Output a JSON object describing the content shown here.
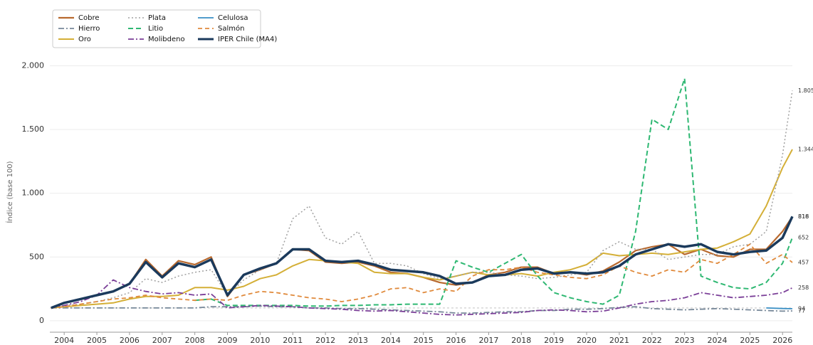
{
  "chart_data": {
    "type": "line",
    "y_label": "Índice (base 100)",
    "x": [
      2003.6,
      2004,
      2004.5,
      2005,
      2005.5,
      2006,
      2006.5,
      2007,
      2007.5,
      2008,
      2008.5,
      2009,
      2009.5,
      2010,
      2010.5,
      2011,
      2011.5,
      2012,
      2012.5,
      2013,
      2013.5,
      2014,
      2014.5,
      2015,
      2015.5,
      2016,
      2016.5,
      2017,
      2017.5,
      2018,
      2018.5,
      2019,
      2019.5,
      2020,
      2020.5,
      2021,
      2021.5,
      2022,
      2022.5,
      2023,
      2023.5,
      2024,
      2024.5,
      2025,
      2025.5,
      2026,
      2026.3
    ],
    "xlim": [
      2003.56,
      2026.3
    ],
    "xticks": [
      2004,
      2005,
      2006,
      2007,
      2008,
      2009,
      2010,
      2011,
      2012,
      2013,
      2014,
      2015,
      2016,
      2017,
      2018,
      2019,
      2020,
      2021,
      2022,
      2023,
      2024,
      2025,
      2026
    ],
    "ylim": [
      -90,
      2460
    ],
    "yticks": [
      0,
      500,
      {
        "value": 1000,
        "label": "1.000"
      },
      {
        "value": 1500,
        "label": "1.500"
      },
      {
        "value": 2000,
        "label": "2.000"
      }
    ],
    "grid": true,
    "baseline": 100,
    "legend": "upper-left",
    "series": [
      {
        "name": "Cobre",
        "color": "#b8692e",
        "width": 2.2,
        "dash": "none",
        "end_label": "816",
        "values": [
          100,
          140,
          170,
          200,
          230,
          290,
          480,
          350,
          470,
          440,
          500,
          190,
          360,
          400,
          450,
          560,
          550,
          460,
          450,
          460,
          430,
          380,
          370,
          340,
          300,
          280,
          300,
          360,
          380,
          420,
          420,
          370,
          380,
          360,
          390,
          460,
          550,
          580,
          600,
          520,
          560,
          510,
          500,
          560,
          560,
          700,
          816
        ]
      },
      {
        "name": "Hierro",
        "color": "#778899",
        "width": 1.8,
        "dash": "8,3,2,3",
        "end_label": "77",
        "values": [
          100,
          100,
          100,
          100,
          100,
          100,
          100,
          100,
          100,
          100,
          110,
          110,
          110,
          115,
          110,
          110,
          100,
          100,
          95,
          95,
          90,
          85,
          80,
          75,
          70,
          60,
          60,
          65,
          70,
          70,
          80,
          80,
          90,
          90,
          95,
          105,
          110,
          95,
          90,
          85,
          90,
          95,
          90,
          85,
          80,
          75,
          77
        ]
      },
      {
        "name": "Oro",
        "color": "#d4af37",
        "width": 2,
        "dash": "none",
        "end_label": "1.344",
        "values": [
          100,
          110,
          120,
          130,
          140,
          170,
          190,
          190,
          200,
          260,
          260,
          240,
          270,
          330,
          360,
          430,
          480,
          470,
          460,
          450,
          380,
          370,
          370,
          340,
          320,
          350,
          380,
          360,
          360,
          370,
          350,
          380,
          400,
          440,
          530,
          510,
          520,
          530,
          520,
          540,
          560,
          570,
          620,
          680,
          900,
          1200,
          1344
        ]
      },
      {
        "name": "Plata",
        "color": "#a0a0a0",
        "width": 1.5,
        "dash": "2,3",
        "end_label": "1.805",
        "values": [
          100,
          120,
          130,
          150,
          180,
          220,
          330,
          300,
          350,
          380,
          400,
          200,
          320,
          400,
          450,
          800,
          900,
          650,
          600,
          700,
          450,
          450,
          430,
          370,
          330,
          350,
          380,
          380,
          360,
          350,
          330,
          340,
          360,
          380,
          550,
          620,
          560,
          560,
          480,
          500,
          520,
          520,
          580,
          600,
          700,
          1300,
          1805
        ]
      },
      {
        "name": "Litio",
        "color": "#2eb872",
        "width": 2,
        "dash": "7,4",
        "end_label": "652",
        "values": [
          null,
          null,
          null,
          null,
          null,
          null,
          null,
          null,
          null,
          160,
          170,
          120,
          120,
          120,
          120,
          120,
          115,
          115,
          120,
          120,
          125,
          125,
          130,
          130,
          130,
          470,
          420,
          380,
          450,
          520,
          350,
          220,
          180,
          150,
          130,
          200,
          700,
          1580,
          1500,
          1900,
          350,
          300,
          260,
          250,
          300,
          450,
          652
        ]
      },
      {
        "name": "Molibdeno",
        "color": "#7b3f98",
        "width": 1.8,
        "dash": "8,3,2,3",
        "end_label": "258",
        "values": [
          100,
          120,
          150,
          200,
          320,
          260,
          230,
          210,
          220,
          200,
          210,
          100,
          110,
          120,
          115,
          110,
          100,
          95,
          90,
          80,
          75,
          80,
          70,
          60,
          50,
          45,
          50,
          55,
          60,
          65,
          80,
          85,
          80,
          70,
          75,
          100,
          130,
          150,
          160,
          180,
          220,
          200,
          180,
          190,
          200,
          220,
          258
        ]
      },
      {
        "name": "Celulosa",
        "color": "#3a8fc4",
        "width": 1.8,
        "dash": "none",
        "end_label": "94",
        "values": [
          null,
          null,
          null,
          null,
          null,
          null,
          null,
          null,
          null,
          null,
          null,
          null,
          null,
          null,
          null,
          null,
          null,
          null,
          null,
          null,
          null,
          null,
          null,
          null,
          null,
          null,
          null,
          null,
          null,
          null,
          null,
          null,
          null,
          null,
          null,
          null,
          null,
          null,
          null,
          null,
          null,
          null,
          null,
          null,
          100,
          96,
          94
        ]
      },
      {
        "name": "Salmón",
        "color": "#e08a3c",
        "width": 1.8,
        "dash": "6,4",
        "end_label": "457",
        "values": [
          100,
          110,
          130,
          150,
          170,
          180,
          200,
          180,
          170,
          160,
          170,
          160,
          200,
          230,
          220,
          200,
          180,
          170,
          150,
          170,
          200,
          250,
          260,
          220,
          250,
          230,
          350,
          400,
          400,
          420,
          380,
          360,
          340,
          330,
          360,
          430,
          380,
          350,
          400,
          380,
          480,
          450,
          520,
          600,
          450,
          520,
          457
        ]
      },
      {
        "name": "IPER Chile (MA4)",
        "color": "#1b3a5c",
        "width": 3.5,
        "dash": "none",
        "end_label": "818",
        "values": [
          100,
          140,
          170,
          200,
          230,
          290,
          460,
          340,
          450,
          420,
          480,
          200,
          360,
          410,
          450,
          560,
          560,
          470,
          460,
          470,
          440,
          400,
          390,
          380,
          350,
          290,
          300,
          350,
          360,
          400,
          410,
          370,
          380,
          370,
          380,
          430,
          520,
          560,
          600,
          580,
          600,
          540,
          520,
          540,
          550,
          650,
          818
        ]
      }
    ]
  }
}
